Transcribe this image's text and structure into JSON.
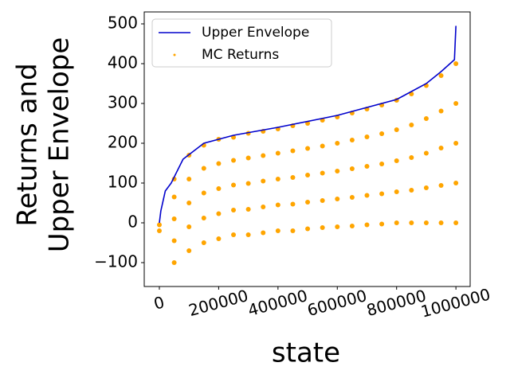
{
  "chart_data": {
    "type": "line-scatter",
    "xlabel": "state",
    "ylabel": [
      "Returns and",
      "Upper Envelope"
    ],
    "xlim": [
      -51000,
      1048000
    ],
    "ylim": [
      -160,
      530
    ],
    "xticks": [
      0,
      200000,
      400000,
      600000,
      800000,
      1000000
    ],
    "yticks": [
      {
        "value": -100,
        "label": "−100"
      },
      0,
      100,
      200,
      300,
      400,
      500
    ],
    "legend": "upper left",
    "series": [
      {
        "name": "Upper Envelope",
        "kind": "line",
        "color": "#0000cc",
        "x": [
          0,
          5000,
          20000,
          40000,
          80000,
          150000,
          250000,
          400000,
          600000,
          800000,
          900000,
          950000,
          995000,
          1000000
        ],
        "values": [
          0,
          30,
          80,
          100,
          160,
          200,
          220,
          240,
          270,
          310,
          350,
          380,
          410,
          495
        ]
      },
      {
        "name": "MC Returns",
        "kind": "scatter",
        "color": "#ffa500",
        "x": [
          0,
          0,
          50000,
          50000,
          50000,
          50000,
          50000,
          100000,
          100000,
          100000,
          100000,
          100000,
          150000,
          150000,
          150000,
          150000,
          150000,
          200000,
          200000,
          200000,
          200000,
          200000,
          250000,
          250000,
          250000,
          250000,
          250000,
          300000,
          300000,
          300000,
          300000,
          300000,
          350000,
          350000,
          350000,
          350000,
          350000,
          400000,
          400000,
          400000,
          400000,
          400000,
          450000,
          450000,
          450000,
          450000,
          450000,
          500000,
          500000,
          500000,
          500000,
          500000,
          550000,
          550000,
          550000,
          550000,
          550000,
          600000,
          600000,
          600000,
          600000,
          600000,
          650000,
          650000,
          650000,
          650000,
          650000,
          700000,
          700000,
          700000,
          700000,
          700000,
          750000,
          750000,
          750000,
          750000,
          750000,
          800000,
          800000,
          800000,
          800000,
          800000,
          850000,
          850000,
          850000,
          850000,
          850000,
          900000,
          900000,
          900000,
          900000,
          900000,
          950000,
          950000,
          950000,
          950000,
          950000,
          1000000,
          1000000,
          1000000,
          1000000,
          1000000
        ],
        "values": [
          -20,
          -5,
          -100,
          -45,
          10,
          65,
          110,
          -70,
          -10,
          50,
          110,
          170,
          -50,
          12,
          75,
          137,
          195,
          -40,
          23,
          86,
          149,
          210,
          -30,
          32,
          95,
          157,
          215,
          -30,
          34,
          99,
          163,
          225,
          -25,
          40,
          105,
          169,
          230,
          -20,
          45,
          110,
          175,
          236,
          -20,
          47,
          114,
          181,
          244,
          -15,
          52,
          120,
          187,
          250,
          -12,
          56,
          125,
          193,
          258,
          -10,
          60,
          130,
          200,
          266,
          -8,
          64,
          136,
          208,
          276,
          -5,
          69,
          142,
          216,
          286,
          -3,
          73,
          148,
          224,
          296,
          0,
          78,
          156,
          234,
          308,
          0,
          82,
          164,
          246,
          324,
          0,
          88,
          175,
          262,
          345,
          0,
          94,
          188,
          281,
          370,
          0,
          100,
          200,
          300,
          400
        ]
      }
    ]
  }
}
